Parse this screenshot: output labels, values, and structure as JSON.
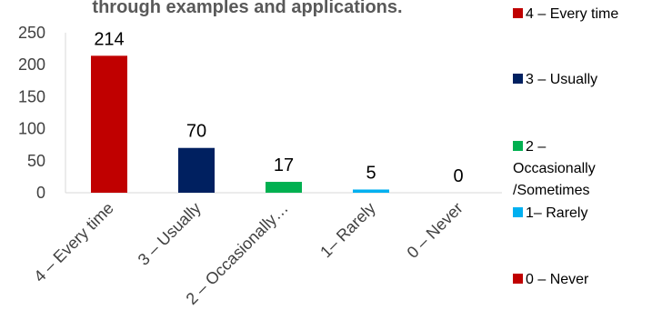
{
  "chart_data": {
    "type": "bar",
    "title": "through examples and applications.",
    "categories": [
      "4 – Every time",
      "3 – Usually",
      "2 – Occasionally…",
      "1– Rarely",
      "0 – Never"
    ],
    "values": [
      214,
      70,
      17,
      5,
      0
    ],
    "colors": [
      "#c00000",
      "#002060",
      "#00b050",
      "#00b0f0",
      "#c00000"
    ],
    "ylim": [
      0,
      250
    ],
    "yticks": [
      0,
      50,
      100,
      150,
      200,
      250
    ],
    "grid": false,
    "legend_position": "right",
    "legend": [
      {
        "lines": [
          "4 – Every time"
        ],
        "color": "#c00000"
      },
      {
        "lines": [
          "3 – Usually"
        ],
        "color": "#002060"
      },
      {
        "lines": [
          "2 –",
          "Occasionally",
          "/Sometimes"
        ],
        "color": "#00b050"
      },
      {
        "lines": [
          "1– Rarely"
        ],
        "color": "#00b0f0"
      },
      {
        "lines": [
          "0 – Never"
        ],
        "color": "#c00000"
      }
    ]
  }
}
